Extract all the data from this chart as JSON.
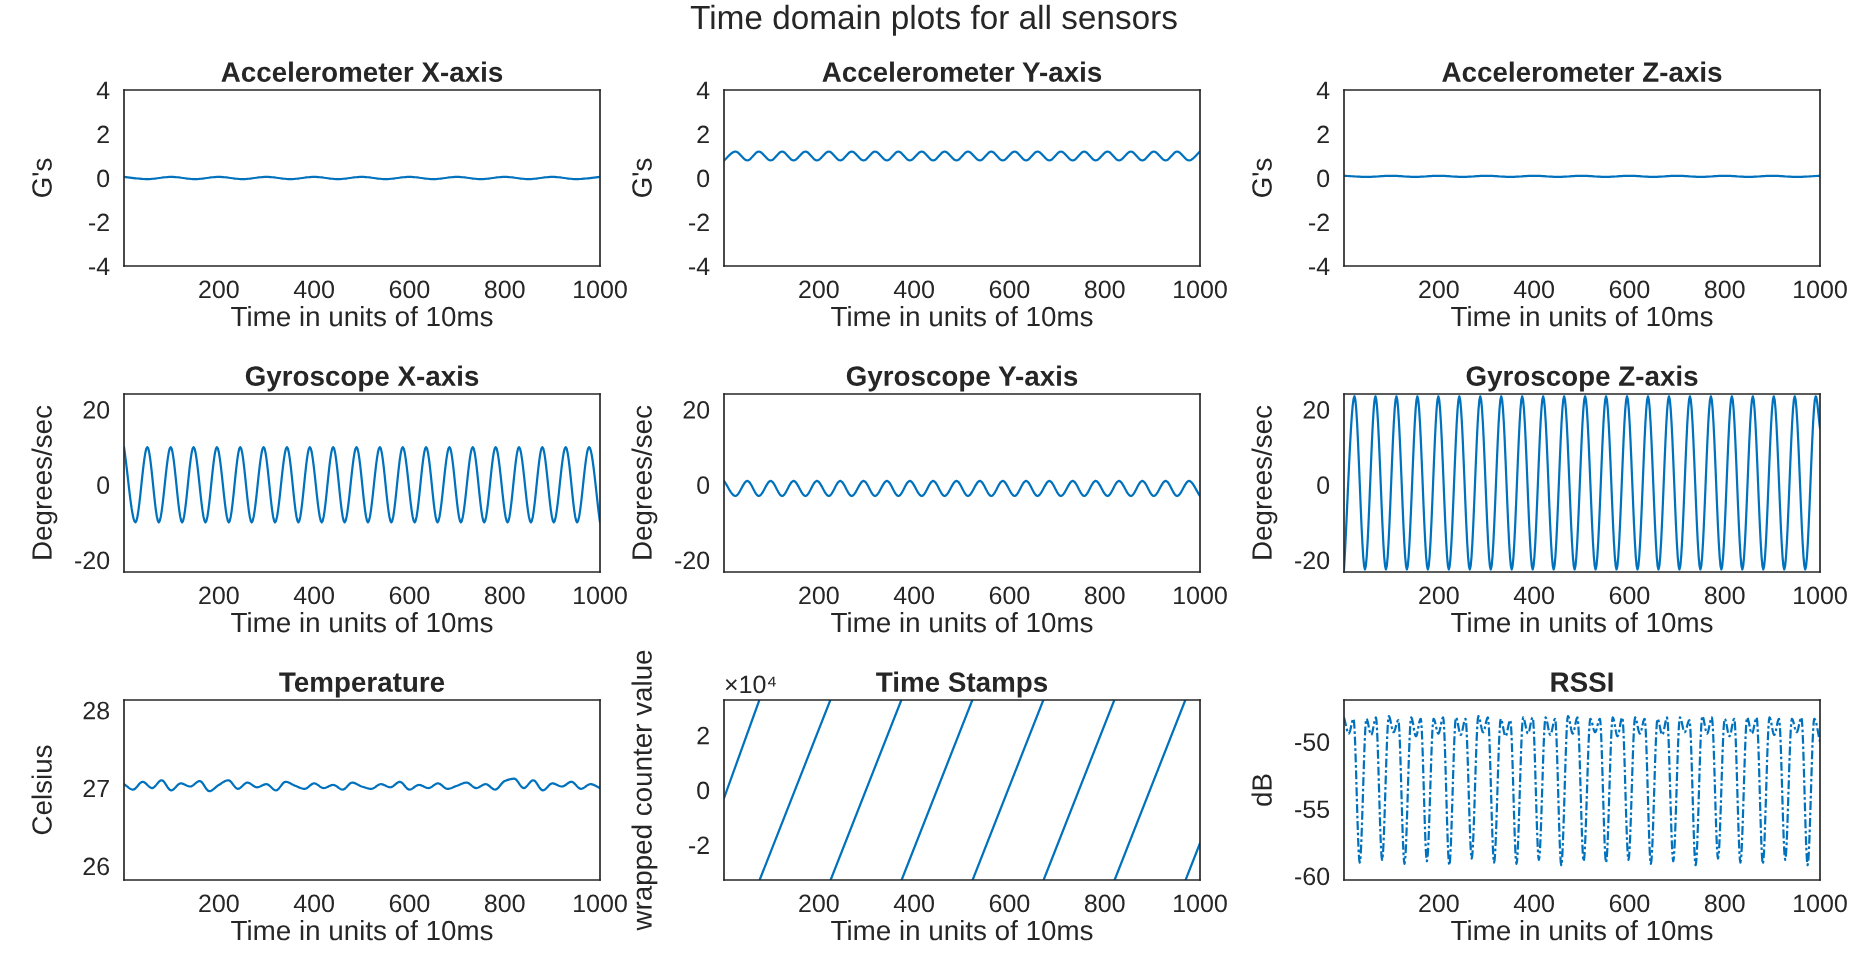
{
  "chart_data": [
    {
      "type": "line",
      "title": "Accelerometer X-axis",
      "xlabel": "Time in units of 10ms",
      "ylabel": "G's",
      "xlim": [
        1,
        1000
      ],
      "xticks": [
        200,
        400,
        600,
        800,
        1000
      ],
      "ylim": [
        -4,
        4
      ],
      "yticks": [
        -4,
        -2,
        0,
        2,
        4
      ],
      "series": [
        {
          "color": "#0072bd",
          "x": [
            1,
            50,
            100,
            150,
            200,
            250,
            300,
            350,
            400,
            450,
            500,
            550,
            600,
            650,
            700,
            750,
            800,
            850,
            900,
            950,
            1000
          ],
          "values": [
            0.05,
            -0.05,
            0.05,
            -0.05,
            0.05,
            -0.05,
            0.05,
            -0.05,
            0.05,
            -0.05,
            0.05,
            -0.05,
            0.05,
            -0.05,
            0.05,
            -0.05,
            0.05,
            -0.05,
            0.05,
            -0.05,
            0.05
          ]
        }
      ]
    },
    {
      "type": "line",
      "title": "Gyroscope X-axis",
      "xlabel": "Time in units of 10ms",
      "ylabel": "Degrees/sec",
      "xlim": [
        1,
        1000
      ],
      "xticks": [
        200,
        400,
        600,
        800,
        1000
      ],
      "ylim": [
        -23.2,
        24.1
      ],
      "yticks": [
        -20,
        0,
        20
      ],
      "series": [
        {
          "color": "#0072bd",
          "x": [
            1,
            25,
            50,
            74,
            99,
            123,
            147,
            172,
            196,
            221,
            245,
            269,
            294,
            318,
            343,
            367,
            391,
            416,
            440,
            464,
            489,
            513,
            538,
            562,
            586,
            611,
            635,
            659,
            684,
            708,
            733,
            757,
            781,
            806,
            830,
            855,
            879,
            903,
            928,
            952,
            977,
            1000
          ],
          "values": [
            10,
            -10,
            10,
            -10,
            10,
            -10,
            10,
            -10,
            10,
            -10,
            10,
            -10,
            10,
            -10,
            10,
            -10,
            10,
            -10,
            10,
            -10,
            10,
            -10,
            10,
            -10,
            10,
            -10,
            10,
            -10,
            10,
            -10,
            10,
            -10,
            10,
            -10,
            10,
            -10,
            10,
            -10,
            10,
            -10,
            10,
            -10
          ]
        }
      ]
    },
    {
      "type": "line",
      "title": "Temperature",
      "xlabel": "Time in units of 10ms",
      "ylabel": "Celsius",
      "xlim": [
        1,
        1000
      ],
      "xticks": [
        200,
        400,
        600,
        800,
        1000
      ],
      "ylim": [
        25.82,
        28.13
      ],
      "yticks": [
        26,
        27,
        28
      ],
      "series": [
        {
          "color": "#0072bd",
          "x": [
            1,
            20,
            40,
            60,
            80,
            100,
            120,
            140,
            160,
            180,
            200,
            220,
            240,
            260,
            280,
            300,
            320,
            340,
            360,
            380,
            400,
            420,
            440,
            460,
            480,
            500,
            520,
            540,
            560,
            580,
            600,
            620,
            640,
            660,
            680,
            700,
            720,
            740,
            760,
            780,
            800,
            820,
            840,
            860,
            880,
            900,
            920,
            940,
            960,
            980,
            1000
          ],
          "values": [
            27.05,
            26.98,
            27.08,
            27.0,
            27.1,
            26.97,
            27.06,
            27.02,
            27.09,
            26.96,
            27.04,
            27.1,
            26.99,
            27.07,
            27.01,
            27.05,
            26.97,
            27.08,
            27.03,
            26.99,
            27.06,
            27.0,
            27.04,
            26.98,
            27.07,
            27.02,
            26.99,
            27.05,
            27.01,
            27.08,
            26.98,
            27.04,
            27.0,
            27.06,
            26.99,
            27.03,
            27.07,
            27.0,
            27.05,
            26.98,
            27.09,
            27.12,
            27.0,
            27.1,
            26.97,
            27.06,
            27.02,
            27.08,
            26.99,
            27.05,
            27.0
          ]
        }
      ]
    },
    {
      "type": "line",
      "title": "Accelerometer Y-axis",
      "xlabel": "Time in units of 10ms",
      "ylabel": "G's",
      "annotations": [
        "Time domain plots for all sensors"
      ],
      "xlim": [
        1,
        1000
      ],
      "xticks": [
        200,
        400,
        600,
        800,
        1000
      ],
      "ylim": [
        -4,
        4
      ],
      "yticks": [
        -4,
        -2,
        0,
        2,
        4
      ],
      "series": [
        {
          "color": "#0072bd",
          "x": [
            1,
            25,
            50,
            74,
            99,
            123,
            147,
            172,
            196,
            221,
            245,
            269,
            294,
            318,
            343,
            367,
            391,
            416,
            440,
            464,
            489,
            513,
            538,
            562,
            586,
            611,
            635,
            659,
            684,
            708,
            733,
            757,
            781,
            806,
            830,
            855,
            879,
            903,
            928,
            952,
            977,
            1000
          ],
          "values": [
            0.8,
            1.2,
            0.8,
            1.2,
            0.8,
            1.2,
            0.8,
            1.2,
            0.8,
            1.2,
            0.8,
            1.2,
            0.8,
            1.2,
            0.8,
            1.2,
            0.8,
            1.2,
            0.8,
            1.2,
            0.8,
            1.2,
            0.8,
            1.2,
            0.8,
            1.2,
            0.8,
            1.2,
            0.8,
            1.2,
            0.8,
            1.2,
            0.8,
            1.2,
            0.8,
            1.2,
            0.8,
            1.2,
            0.8,
            1.2,
            0.8,
            1.2
          ]
        }
      ]
    },
    {
      "type": "line",
      "title": "Gyroscope Y-axis",
      "xlabel": "Time in units of 10ms",
      "ylabel": "Degrees/sec",
      "xlim": [
        1,
        1000
      ],
      "xticks": [
        200,
        400,
        600,
        800,
        1000
      ],
      "ylim": [
        -23.2,
        24.1
      ],
      "yticks": [
        -20,
        0,
        20
      ],
      "series": [
        {
          "color": "#0072bd",
          "x": [
            1,
            25,
            50,
            74,
            99,
            123,
            147,
            172,
            196,
            221,
            245,
            269,
            294,
            318,
            343,
            367,
            391,
            416,
            440,
            464,
            489,
            513,
            538,
            562,
            586,
            611,
            635,
            659,
            684,
            708,
            733,
            757,
            781,
            806,
            830,
            855,
            879,
            903,
            928,
            952,
            977,
            1000
          ],
          "values": [
            1,
            -3,
            1,
            -3,
            1,
            -3,
            1,
            -3,
            1,
            -3,
            1,
            -3,
            1,
            -3,
            1,
            -3,
            1,
            -3,
            1,
            -3,
            1,
            -3,
            1,
            -3,
            1,
            -3,
            1,
            -3,
            1,
            -3,
            1,
            -3,
            1,
            -3,
            1,
            -3,
            1,
            -3,
            1,
            -3,
            1,
            -3
          ]
        }
      ]
    },
    {
      "type": "line",
      "title": "Time Stamps",
      "xlabel": "Time in units of 10ms",
      "ylabel": "wrapped counter value",
      "annotations": [
        "×10⁴"
      ],
      "xlim": [
        1,
        1000
      ],
      "xticks": [
        200,
        400,
        600,
        800,
        1000
      ],
      "ylim": [
        -3.28,
        3.28
      ],
      "yticks": [
        -2,
        0,
        2
      ],
      "series": [
        {
          "color": "#0072bd",
          "x": [
            1,
            75
          ],
          "values": [
            -0.3,
            3.27
          ]
        },
        {
          "color": "#0072bd",
          "x": [
            76,
            224
          ],
          "values": [
            -3.27,
            3.27
          ]
        },
        {
          "color": "#0072bd",
          "x": [
            225,
            373
          ],
          "values": [
            -3.27,
            3.27
          ]
        },
        {
          "color": "#0072bd",
          "x": [
            374,
            522
          ],
          "values": [
            -3.27,
            3.27
          ]
        },
        {
          "color": "#0072bd",
          "x": [
            523,
            671
          ],
          "values": [
            -3.27,
            3.27
          ]
        },
        {
          "color": "#0072bd",
          "x": [
            672,
            820
          ],
          "values": [
            -3.27,
            3.27
          ]
        },
        {
          "color": "#0072bd",
          "x": [
            821,
            969
          ],
          "values": [
            -3.27,
            3.27
          ]
        },
        {
          "color": "#0072bd",
          "x": [
            970,
            1000
          ],
          "values": [
            -3.27,
            -1.94
          ]
        }
      ]
    },
    {
      "type": "line",
      "title": "Accelerometer Z-axis",
      "xlabel": "Time in units of 10ms",
      "ylabel": "G's",
      "xlim": [
        1,
        1000
      ],
      "xticks": [
        200,
        400,
        600,
        800,
        1000
      ],
      "ylim": [
        -4,
        4
      ],
      "yticks": [
        -4,
        -2,
        0,
        2,
        4
      ],
      "series": [
        {
          "color": "#0072bd",
          "x": [
            1,
            50,
            100,
            150,
            200,
            250,
            300,
            350,
            400,
            450,
            500,
            550,
            600,
            650,
            700,
            750,
            800,
            850,
            900,
            950,
            1000
          ],
          "values": [
            0.1,
            0.05,
            0.1,
            0.05,
            0.1,
            0.05,
            0.1,
            0.05,
            0.1,
            0.05,
            0.1,
            0.05,
            0.1,
            0.05,
            0.1,
            0.05,
            0.1,
            0.05,
            0.1,
            0.05,
            0.1
          ]
        }
      ]
    },
    {
      "type": "line",
      "title": "Gyroscope Z-axis",
      "xlabel": "Time in units of 10ms",
      "ylabel": "Degrees/sec",
      "xlim": [
        1,
        1000
      ],
      "xticks": [
        200,
        400,
        600,
        800,
        1000
      ],
      "ylim": [
        -23.2,
        24.1
      ],
      "yticks": [
        -20,
        0,
        20
      ],
      "series": [
        {
          "color": "#0072bd",
          "x": [
            1,
            23,
            45,
            67,
            89,
            111,
            133,
            155,
            177,
            199,
            221,
            243,
            265,
            287,
            309,
            331,
            353,
            375,
            397,
            419,
            441,
            463,
            485,
            507,
            529,
            551,
            573,
            595,
            617,
            639,
            661,
            683,
            705,
            727,
            749,
            771,
            793,
            815,
            837,
            859,
            881,
            903,
            925,
            947,
            969,
            991,
            1000
          ],
          "values": [
            -22.5,
            23.5,
            -22.5,
            23.5,
            -22.5,
            23.5,
            -22.5,
            23.5,
            -22.5,
            23.5,
            -22.5,
            23.5,
            -22.5,
            23.5,
            -22.5,
            23.5,
            -22.5,
            23.5,
            -22.5,
            23.5,
            -22.5,
            23.5,
            -22.5,
            23.5,
            -22.5,
            23.5,
            -22.5,
            23.5,
            -22.5,
            23.5,
            -22.5,
            23.5,
            -22.5,
            23.5,
            -22.5,
            23.5,
            -22.5,
            23.5,
            -22.5,
            23.5,
            -22.5,
            23.5,
            -22.5,
            23.5,
            -22.5,
            23.5,
            15
          ]
        }
      ]
    },
    {
      "type": "line",
      "title": "RSSI",
      "xlabel": "Time in units of 10ms",
      "ylabel": "dB",
      "xlim": [
        1,
        1000
      ],
      "xticks": [
        200,
        400,
        600,
        800,
        1000
      ],
      "ylim": [
        -60.3,
        -46.9
      ],
      "yticks": [
        -60,
        -55,
        -50
      ],
      "line_style": "dashdot",
      "series": [
        {
          "color": "#0072bd",
          "x": [
            1,
            11,
            21,
            34,
            48,
            58,
            68,
            81,
            95,
            105,
            115,
            128,
            142,
            152,
            162,
            175,
            189,
            199,
            209,
            222,
            236,
            246,
            256,
            269,
            283,
            293,
            303,
            316,
            330,
            340,
            350,
            363,
            377,
            387,
            397,
            410,
            424,
            434,
            444,
            457,
            471,
            481,
            491,
            504,
            518,
            528,
            538,
            551,
            565,
            575,
            585,
            598,
            612,
            622,
            632,
            645,
            659,
            669,
            679,
            692,
            706,
            716,
            726,
            739,
            753,
            763,
            773,
            786,
            800,
            810,
            820,
            833,
            847,
            857,
            867,
            880,
            894,
            904,
            914,
            927,
            941,
            951,
            961,
            974,
            988,
            1000
          ],
          "values": [
            -48.2,
            -49.4,
            -48.3,
            -59.0,
            -48.3,
            -49.5,
            -48.2,
            -58.8,
            -48.1,
            -49.3,
            -48.4,
            -59.1,
            -48.2,
            -49.6,
            -48.3,
            -58.9,
            -48.3,
            -49.4,
            -48.2,
            -59.2,
            -48.2,
            -49.5,
            -48.3,
            -58.7,
            -48.1,
            -49.3,
            -48.2,
            -59.0,
            -48.3,
            -49.6,
            -48.4,
            -59.1,
            -48.2,
            -49.4,
            -48.2,
            -58.8,
            -48.2,
            -49.5,
            -48.3,
            -59.2,
            -48.1,
            -49.4,
            -48.2,
            -58.9,
            -48.3,
            -49.3,
            -48.3,
            -59.0,
            -48.2,
            -49.6,
            -48.2,
            -58.8,
            -48.2,
            -49.4,
            -48.3,
            -59.1,
            -48.3,
            -49.5,
            -48.2,
            -58.9,
            -48.2,
            -49.3,
            -48.4,
            -59.2,
            -48.1,
            -49.4,
            -48.2,
            -58.7,
            -48.3,
            -49.6,
            -48.3,
            -59.0,
            -48.2,
            -49.4,
            -48.2,
            -59.1,
            -48.2,
            -49.5,
            -48.3,
            -58.8,
            -48.3,
            -49.3,
            -48.2,
            -59.2,
            -48.3,
            -50.0
          ]
        }
      ]
    }
  ]
}
